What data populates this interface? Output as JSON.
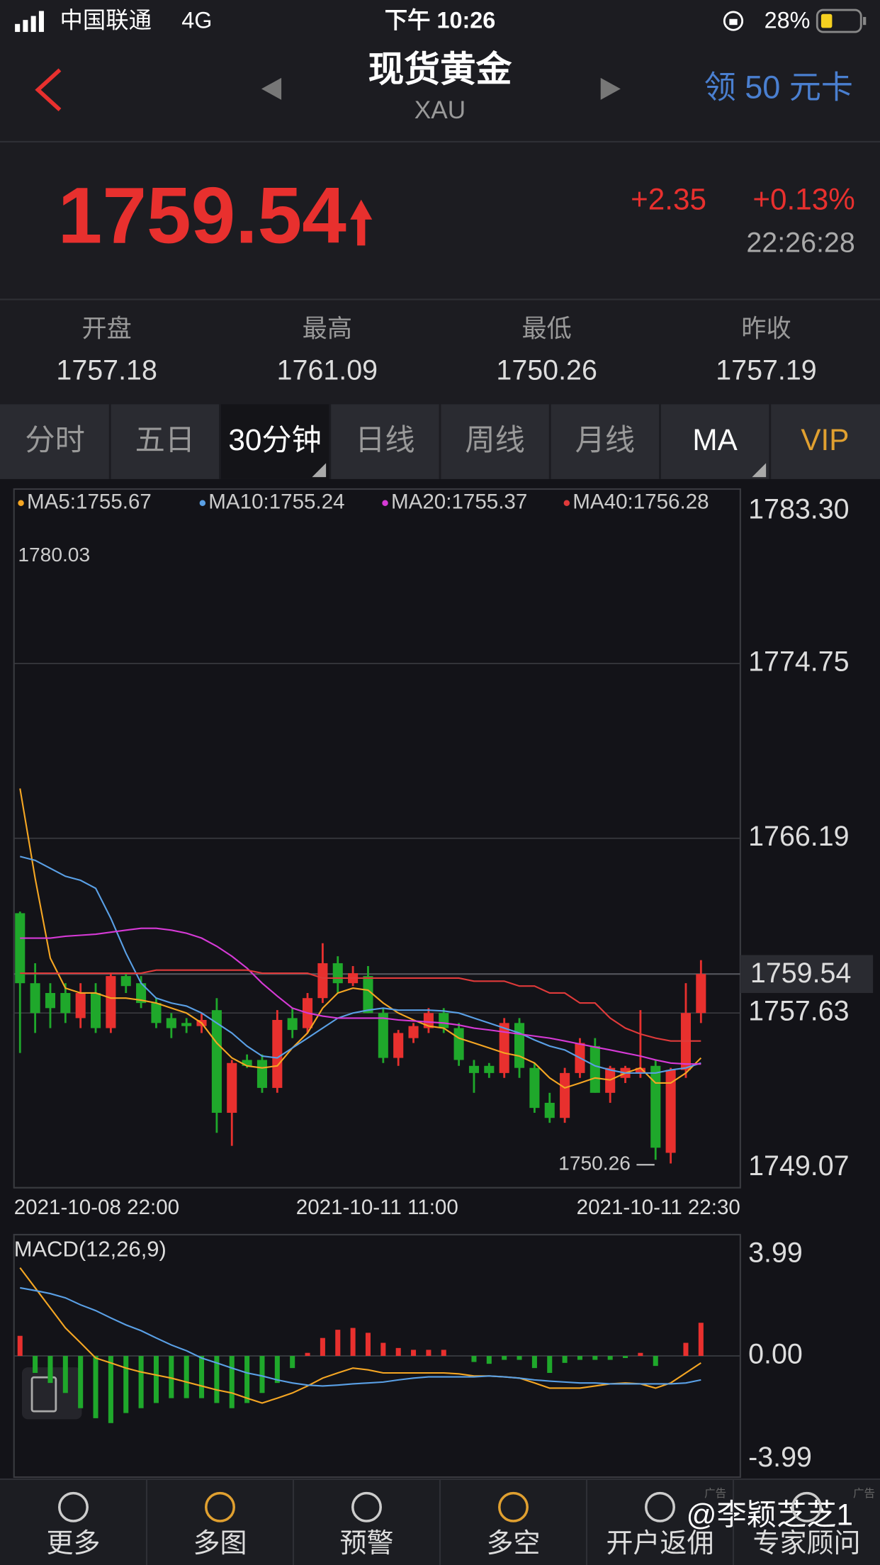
{
  "status_bar": {
    "carrier": "中国联通",
    "network": "4G",
    "time": "下午 10:26",
    "battery": "28%"
  },
  "header": {
    "title": "现货黄金",
    "symbol": "XAU",
    "promo": "领 50 元卡"
  },
  "quote": {
    "price": "1759.54",
    "change": "+2.35",
    "change_pct": "+0.13%",
    "time": "22:26:28"
  },
  "stats": [
    {
      "label": "开盘",
      "value": "1757.18"
    },
    {
      "label": "最高",
      "value": "1761.09"
    },
    {
      "label": "最低",
      "value": "1750.26"
    },
    {
      "label": "昨收",
      "value": "1757.19"
    }
  ],
  "tabs": [
    "分时",
    "五日",
    "30分钟",
    "日线",
    "周线",
    "月线",
    "MA",
    "VIP"
  ],
  "chart_data": [
    {
      "type": "candlestick",
      "ylim": [
        1749.07,
        1783.3
      ],
      "yticks": [
        1749.07,
        1757.63,
        1766.19,
        1774.75,
        {
          "value": 1783.3,
          "label": "1783.30"
        }
      ],
      "grid": true,
      "x_tick_labels": [
        "2021-10-08 22:00",
        "2021-10-11 11:00",
        "2021-10-11 22:30"
      ],
      "up_color": "#e8302e",
      "down_color": "#1fa82b",
      "last_price": 1759.54,
      "annotations": [
        "1780.03",
        "1750.26"
      ],
      "open": [
        1762.52,
        1759.09,
        1758.61,
        1758.61,
        1757.38,
        1758.61,
        1756.89,
        1759.44,
        1759.09,
        1758.12,
        1757.38,
        1757.14,
        1756.99,
        1757.77,
        1752.74,
        1755.33,
        1755.33,
        1753.96,
        1757.38,
        1756.89,
        1758.36,
        1760.07,
        1759.09,
        1759.44,
        1757.63,
        1755.43,
        1756.4,
        1756.89,
        1757.63,
        1756.89,
        1755.04,
        1755.04,
        1754.69,
        1757.14,
        1754.94,
        1753.23,
        1752.49,
        1754.69,
        1756.01,
        1753.72,
        1754.45,
        1754.69,
        1755.04,
        1750.78,
        1754.84,
        1757.63
      ],
      "high": [
        1762.6,
        1760.07,
        1759.09,
        1759.09,
        1759.09,
        1759.09,
        1759.58,
        1759.58,
        1759.44,
        1758.36,
        1757.63,
        1757.38,
        1757.63,
        1758.36,
        1755.33,
        1755.6,
        1755.6,
        1757.77,
        1757.87,
        1758.61,
        1761.05,
        1760.41,
        1759.93,
        1759.93,
        1757.87,
        1756.8,
        1757.14,
        1757.87,
        1757.87,
        1757.14,
        1755.33,
        1755.18,
        1757.38,
        1757.38,
        1755.18,
        1753.72,
        1754.94,
        1756.4,
        1756.4,
        1755.04,
        1755.04,
        1757.77,
        1755.33,
        1754.94,
        1759.09,
        1760.22
      ],
      "low": [
        1755.67,
        1756.65,
        1756.89,
        1757.14,
        1756.89,
        1756.65,
        1756.65,
        1758.61,
        1757.87,
        1756.89,
        1756.4,
        1756.65,
        1756.65,
        1751.76,
        1751.12,
        1754.94,
        1753.72,
        1753.72,
        1756.4,
        1756.65,
        1758.12,
        1758.61,
        1758.95,
        1757.63,
        1755.18,
        1755.04,
        1756.16,
        1756.65,
        1756.65,
        1755.04,
        1753.72,
        1754.45,
        1754.45,
        1754.45,
        1752.74,
        1752.25,
        1752.25,
        1754.45,
        1753.72,
        1753.23,
        1754.2,
        1754.45,
        1750.44,
        1750.26,
        1754.45,
        1757.14
      ],
      "close": [
        1759.09,
        1757.63,
        1757.87,
        1757.63,
        1758.61,
        1756.89,
        1759.44,
        1758.95,
        1758.12,
        1757.14,
        1756.89,
        1756.99,
        1757.29,
        1752.74,
        1755.18,
        1755.04,
        1753.96,
        1757.29,
        1756.8,
        1758.36,
        1760.07,
        1759.09,
        1759.58,
        1757.63,
        1755.43,
        1756.65,
        1756.99,
        1757.63,
        1756.89,
        1755.33,
        1754.69,
        1754.69,
        1757.14,
        1754.94,
        1752.98,
        1752.49,
        1754.69,
        1756.16,
        1753.72,
        1754.94,
        1754.94,
        1754.94,
        1751.03,
        1754.84,
        1757.63,
        1759.54
      ],
      "series": [
        {
          "name": "MA5:1755.67",
          "color": "#f5a623",
          "values": [
            1768.63,
            1764.23,
            1760.32,
            1758.85,
            1758.61,
            1758.61,
            1758.36,
            1758.36,
            1758.26,
            1758.12,
            1757.87,
            1757.63,
            1757.14,
            1756.16,
            1755.43,
            1755.04,
            1754.94,
            1755.04,
            1755.92,
            1756.65,
            1757.87,
            1758.61,
            1758.85,
            1758.75,
            1758.12,
            1757.63,
            1757.29,
            1756.99,
            1756.89,
            1756.4,
            1756.16,
            1755.92,
            1755.67,
            1755.52,
            1755.18,
            1754.45,
            1753.96,
            1754.2,
            1754.45,
            1754.35,
            1754.69,
            1754.94,
            1754.2,
            1754.2,
            1754.69,
            1755.43
          ]
        },
        {
          "name": "MA10:1755.24",
          "color": "#5aa0e6",
          "values": [
            1765.3,
            1765.11,
            1764.72,
            1764.33,
            1764.13,
            1763.74,
            1762.27,
            1760.56,
            1759.09,
            1758.36,
            1758.12,
            1757.97,
            1757.63,
            1757.14,
            1756.65,
            1756.01,
            1755.52,
            1755.43,
            1755.92,
            1756.4,
            1756.89,
            1757.38,
            1757.63,
            1757.77,
            1757.87,
            1757.77,
            1757.77,
            1757.77,
            1757.73,
            1757.63,
            1757.38,
            1757.14,
            1756.89,
            1756.65,
            1756.31,
            1756.01,
            1755.82,
            1755.43,
            1755.04,
            1754.84,
            1754.69,
            1754.69,
            1754.69,
            1754.84,
            1754.94,
            1755.18
          ]
        },
        {
          "name": "MA20:1755.37",
          "color": "#d63ad6",
          "values": [
            1761.3,
            1761.3,
            1761.3,
            1761.39,
            1761.44,
            1761.49,
            1761.59,
            1761.69,
            1761.78,
            1761.78,
            1761.69,
            1761.54,
            1761.3,
            1760.9,
            1760.41,
            1759.83,
            1759.09,
            1758.46,
            1757.87,
            1757.63,
            1757.48,
            1757.38,
            1757.38,
            1757.38,
            1757.38,
            1757.29,
            1757.24,
            1757.19,
            1757.14,
            1757.04,
            1756.89,
            1756.8,
            1756.7,
            1756.6,
            1756.5,
            1756.4,
            1756.26,
            1756.11,
            1755.96,
            1755.82,
            1755.67,
            1755.52,
            1755.33,
            1755.18,
            1755.13,
            1755.13
          ]
        },
        {
          "name": "MA40:1756.28",
          "color": "#e03a3a",
          "values": [
            1759.58,
            1759.58,
            1759.58,
            1759.58,
            1759.58,
            1759.58,
            1759.58,
            1759.58,
            1759.58,
            1759.73,
            1759.73,
            1759.73,
            1759.73,
            1759.73,
            1759.73,
            1759.73,
            1759.58,
            1759.58,
            1759.58,
            1759.58,
            1759.34,
            1759.34,
            1759.34,
            1759.34,
            1759.34,
            1759.34,
            1759.34,
            1759.34,
            1759.34,
            1759.34,
            1759.19,
            1759.19,
            1759.19,
            1758.95,
            1758.95,
            1758.61,
            1758.61,
            1758.12,
            1758.12,
            1757.38,
            1756.89,
            1756.6,
            1756.4,
            1756.26,
            1756.26,
            1756.26
          ]
        }
      ]
    },
    {
      "type": "macd",
      "title": "MACD(12,26,9)",
      "ylim": [
        -3.99,
        3.99
      ],
      "yticks": [
        -3.99,
        {
          "value": 0,
          "label": "0.00"
        },
        3.99
      ],
      "up_color": "#e8302e",
      "down_color": "#1fa82b",
      "values": [
        0.66,
        -0.56,
        -0.89,
        -1.22,
        -1.72,
        -2.05,
        -2.21,
        -1.88,
        -1.72,
        -1.55,
        -1.39,
        -1.39,
        -1.39,
        -1.55,
        -1.72,
        -1.55,
        -1.22,
        -0.89,
        -0.4,
        0.1,
        0.59,
        0.86,
        0.92,
        0.76,
        0.43,
        0.26,
        0.2,
        0.2,
        0.2,
        0,
        -0.2,
        -0.26,
        -0.13,
        -0.13,
        -0.4,
        -0.56,
        -0.23,
        -0.13,
        -0.13,
        -0.13,
        -0.07,
        0.1,
        -0.33,
        0,
        0.43,
        1.09
      ],
      "series": [
        {
          "color": "#f5a623",
          "values": [
            2.9,
            2.24,
            1.58,
            0.92,
            0.43,
            -0.07,
            -0.23,
            -0.4,
            -0.53,
            -0.63,
            -0.73,
            -0.86,
            -0.99,
            -1.12,
            -1.22,
            -1.39,
            -1.55,
            -1.39,
            -1.22,
            -0.99,
            -0.73,
            -0.56,
            -0.4,
            -0.46,
            -0.56,
            -0.56,
            -0.56,
            -0.56,
            -0.56,
            -0.59,
            -0.66,
            -0.66,
            -0.69,
            -0.73,
            -0.89,
            -1.06,
            -1.06,
            -1.06,
            -0.99,
            -0.92,
            -0.89,
            -0.92,
            -1.06,
            -0.89,
            -0.56,
            -0.23
          ]
        },
        {
          "color": "#5aa0e6",
          "values": [
            2.24,
            2.15,
            2.05,
            1.91,
            1.68,
            1.49,
            1.25,
            1.02,
            0.83,
            0.59,
            0.36,
            0.17,
            -0.07,
            -0.23,
            -0.4,
            -0.56,
            -0.66,
            -0.79,
            -0.89,
            -0.96,
            -0.99,
            -0.96,
            -0.92,
            -0.89,
            -0.86,
            -0.79,
            -0.73,
            -0.69,
            -0.69,
            -0.69,
            -0.69,
            -0.66,
            -0.69,
            -0.73,
            -0.79,
            -0.83,
            -0.86,
            -0.89,
            -0.89,
            -0.92,
            -0.92,
            -0.92,
            -0.92,
            -0.92,
            -0.89,
            -0.79
          ]
        }
      ]
    }
  ],
  "nav": [
    "更多",
    "多图",
    "预警",
    "多空",
    "开户返佣",
    "专家顾问"
  ],
  "ad_labels": [
    "广告",
    "广告"
  ],
  "watermark": "@李颖芝芝1"
}
